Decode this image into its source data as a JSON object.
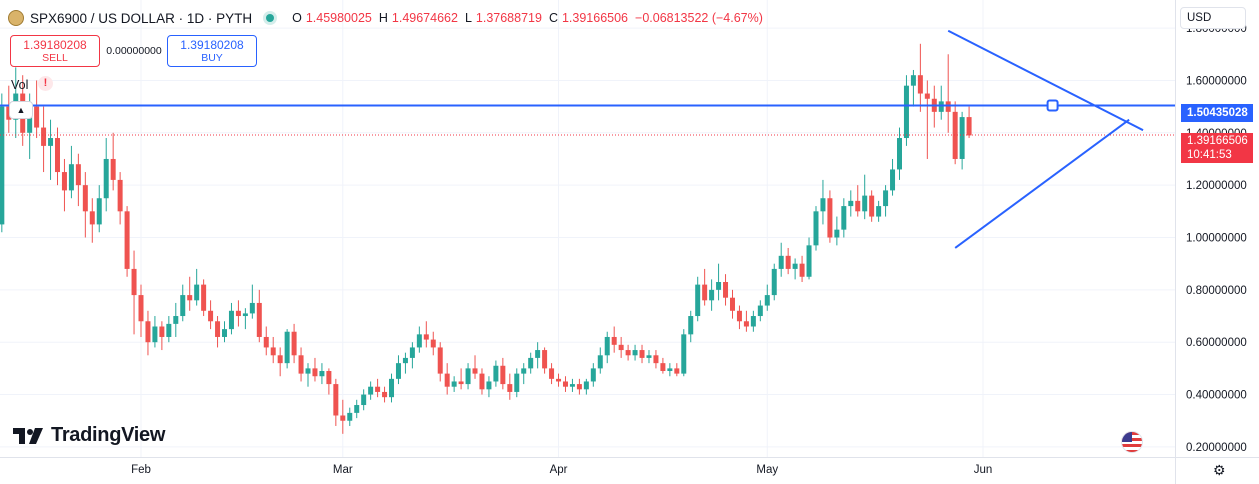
{
  "header": {
    "symbol_title": "SPX6900 / US DOLLAR · 1D · PYTH",
    "open_label": "O",
    "open_value": "1.45980025",
    "high_label": "H",
    "high_value": "1.49674662",
    "low_label": "L",
    "low_value": "1.37688719",
    "close_label": "C",
    "close_value": "1.39166506",
    "change_value": "−0.06813522 (−4.67%)"
  },
  "trade": {
    "sell_price": "1.39180208",
    "sell_label": "SELL",
    "spread": "0.00000000",
    "buy_price": "1.39180208",
    "buy_label": "BUY"
  },
  "volume_label": "Vol",
  "volume_warning": "!",
  "currency_selector": "USD",
  "brand": "TradingView",
  "price_tags": {
    "horizontal_line": "1.50435028",
    "last_price": "1.39166506",
    "countdown": "10:41:53"
  },
  "icons": [
    "symbol-logo-icon",
    "market-open-dot-icon",
    "collapse-chevron-icon",
    "settings-gear-icon",
    "us-flag-icon",
    "tradingview-logo-icon"
  ],
  "colors": {
    "up": "#26a69a",
    "down": "#ef5350",
    "drawing": "#2962ff",
    "price_line": "#f23645"
  },
  "chart_data": {
    "type": "candlestick",
    "x_labels": [
      "Feb",
      "Mar",
      "Apr",
      "May",
      "Jun"
    ],
    "y_tick_labels": [
      "1.80000000",
      "1.60000000",
      "1.40000000",
      "1.20000000",
      "1.00000000",
      "0.80000000",
      "0.60000000",
      "0.40000000",
      "0.20000000"
    ],
    "y_ticks": [
      1.8,
      1.6,
      1.4,
      1.2,
      1.0,
      0.8,
      0.6,
      0.4,
      0.2
    ],
    "ylim": [
      0.15,
      1.85
    ],
    "date_range": [
      "2024-01-08",
      "2024-06-20"
    ],
    "candles": [
      [
        1.05,
        1.15,
        0.88,
        1.02
      ],
      [
        1.02,
        1.22,
        0.98,
        1.18
      ],
      [
        1.18,
        1.3,
        1.05,
        1.2
      ],
      [
        1.2,
        1.25,
        1.0,
        1.05
      ],
      [
        1.05,
        1.55,
        1.02,
        1.5
      ],
      [
        1.5,
        1.58,
        1.4,
        1.45
      ],
      [
        1.45,
        1.65,
        1.38,
        1.55
      ],
      [
        1.55,
        1.62,
        1.35,
        1.4
      ],
      [
        1.4,
        1.55,
        1.3,
        1.5
      ],
      [
        1.5,
        1.6,
        1.38,
        1.42
      ],
      [
        1.42,
        1.5,
        1.25,
        1.35
      ],
      [
        1.35,
        1.45,
        1.22,
        1.38
      ],
      [
        1.38,
        1.42,
        1.2,
        1.25
      ],
      [
        1.25,
        1.3,
        1.1,
        1.18
      ],
      [
        1.18,
        1.35,
        1.15,
        1.28
      ],
      [
        1.28,
        1.32,
        1.12,
        1.2
      ],
      [
        1.2,
        1.25,
        1.0,
        1.1
      ],
      [
        1.1,
        1.15,
        0.98,
        1.05
      ],
      [
        1.05,
        1.2,
        1.02,
        1.15
      ],
      [
        1.15,
        1.38,
        1.1,
        1.3
      ],
      [
        1.3,
        1.4,
        1.18,
        1.22
      ],
      [
        1.22,
        1.25,
        1.05,
        1.1
      ],
      [
        1.1,
        1.12,
        0.85,
        0.88
      ],
      [
        0.88,
        0.95,
        0.63,
        0.78
      ],
      [
        0.78,
        0.82,
        0.62,
        0.68
      ],
      [
        0.68,
        0.72,
        0.55,
        0.6
      ],
      [
        0.6,
        0.7,
        0.58,
        0.66
      ],
      [
        0.66,
        0.68,
        0.57,
        0.62
      ],
      [
        0.62,
        0.7,
        0.6,
        0.67
      ],
      [
        0.67,
        0.75,
        0.62,
        0.7
      ],
      [
        0.7,
        0.82,
        0.68,
        0.78
      ],
      [
        0.78,
        0.85,
        0.72,
        0.76
      ],
      [
        0.76,
        0.88,
        0.74,
        0.82
      ],
      [
        0.82,
        0.84,
        0.7,
        0.72
      ],
      [
        0.72,
        0.76,
        0.65,
        0.68
      ],
      [
        0.68,
        0.7,
        0.58,
        0.62
      ],
      [
        0.62,
        0.68,
        0.6,
        0.65
      ],
      [
        0.65,
        0.75,
        0.63,
        0.72
      ],
      [
        0.72,
        0.76,
        0.66,
        0.7
      ],
      [
        0.7,
        0.73,
        0.65,
        0.71
      ],
      [
        0.71,
        0.82,
        0.69,
        0.75
      ],
      [
        0.75,
        0.8,
        0.6,
        0.62
      ],
      [
        0.62,
        0.66,
        0.55,
        0.58
      ],
      [
        0.58,
        0.62,
        0.52,
        0.55
      ],
      [
        0.55,
        0.58,
        0.47,
        0.52
      ],
      [
        0.52,
        0.65,
        0.5,
        0.64
      ],
      [
        0.64,
        0.67,
        0.52,
        0.55
      ],
      [
        0.55,
        0.58,
        0.45,
        0.48
      ],
      [
        0.48,
        0.52,
        0.43,
        0.5
      ],
      [
        0.5,
        0.54,
        0.45,
        0.47
      ],
      [
        0.47,
        0.52,
        0.44,
        0.49
      ],
      [
        0.49,
        0.5,
        0.4,
        0.44
      ],
      [
        0.44,
        0.46,
        0.28,
        0.32
      ],
      [
        0.32,
        0.38,
        0.25,
        0.3
      ],
      [
        0.3,
        0.35,
        0.28,
        0.33
      ],
      [
        0.33,
        0.38,
        0.31,
        0.36
      ],
      [
        0.36,
        0.42,
        0.34,
        0.4
      ],
      [
        0.4,
        0.45,
        0.38,
        0.43
      ],
      [
        0.43,
        0.46,
        0.39,
        0.41
      ],
      [
        0.41,
        0.43,
        0.37,
        0.39
      ],
      [
        0.39,
        0.48,
        0.37,
        0.46
      ],
      [
        0.46,
        0.55,
        0.44,
        0.52
      ],
      [
        0.52,
        0.56,
        0.48,
        0.54
      ],
      [
        0.54,
        0.6,
        0.5,
        0.58
      ],
      [
        0.58,
        0.66,
        0.56,
        0.63
      ],
      [
        0.63,
        0.68,
        0.58,
        0.61
      ],
      [
        0.61,
        0.64,
        0.55,
        0.58
      ],
      [
        0.58,
        0.6,
        0.45,
        0.48
      ],
      [
        0.48,
        0.52,
        0.4,
        0.43
      ],
      [
        0.43,
        0.47,
        0.41,
        0.45
      ],
      [
        0.45,
        0.5,
        0.42,
        0.44
      ],
      [
        0.44,
        0.52,
        0.42,
        0.5
      ],
      [
        0.5,
        0.55,
        0.46,
        0.48
      ],
      [
        0.48,
        0.5,
        0.4,
        0.42
      ],
      [
        0.42,
        0.47,
        0.39,
        0.45
      ],
      [
        0.45,
        0.53,
        0.43,
        0.51
      ],
      [
        0.51,
        0.54,
        0.42,
        0.44
      ],
      [
        0.44,
        0.48,
        0.38,
        0.41
      ],
      [
        0.41,
        0.5,
        0.39,
        0.48
      ],
      [
        0.48,
        0.52,
        0.44,
        0.5
      ],
      [
        0.5,
        0.56,
        0.48,
        0.54
      ],
      [
        0.54,
        0.6,
        0.5,
        0.57
      ],
      [
        0.57,
        0.58,
        0.48,
        0.5
      ],
      [
        0.5,
        0.52,
        0.44,
        0.46
      ],
      [
        0.46,
        0.48,
        0.43,
        0.45
      ],
      [
        0.45,
        0.47,
        0.41,
        0.43
      ],
      [
        0.43,
        0.46,
        0.41,
        0.44
      ],
      [
        0.44,
        0.46,
        0.4,
        0.42
      ],
      [
        0.42,
        0.46,
        0.4,
        0.45
      ],
      [
        0.45,
        0.52,
        0.43,
        0.5
      ],
      [
        0.5,
        0.58,
        0.48,
        0.55
      ],
      [
        0.55,
        0.64,
        0.52,
        0.62
      ],
      [
        0.62,
        0.66,
        0.56,
        0.59
      ],
      [
        0.59,
        0.62,
        0.54,
        0.57
      ],
      [
        0.57,
        0.59,
        0.53,
        0.55
      ],
      [
        0.55,
        0.59,
        0.53,
        0.57
      ],
      [
        0.57,
        0.59,
        0.52,
        0.54
      ],
      [
        0.54,
        0.57,
        0.52,
        0.55
      ],
      [
        0.55,
        0.57,
        0.5,
        0.52
      ],
      [
        0.52,
        0.54,
        0.48,
        0.49
      ],
      [
        0.49,
        0.52,
        0.47,
        0.5
      ],
      [
        0.5,
        0.52,
        0.47,
        0.48
      ],
      [
        0.48,
        0.65,
        0.47,
        0.63
      ],
      [
        0.63,
        0.72,
        0.6,
        0.7
      ],
      [
        0.7,
        0.85,
        0.68,
        0.82
      ],
      [
        0.82,
        0.88,
        0.74,
        0.76
      ],
      [
        0.76,
        0.84,
        0.72,
        0.8
      ],
      [
        0.8,
        0.9,
        0.76,
        0.83
      ],
      [
        0.83,
        0.86,
        0.74,
        0.77
      ],
      [
        0.77,
        0.8,
        0.69,
        0.72
      ],
      [
        0.72,
        0.74,
        0.65,
        0.68
      ],
      [
        0.68,
        0.72,
        0.64,
        0.66
      ],
      [
        0.66,
        0.72,
        0.64,
        0.7
      ],
      [
        0.7,
        0.76,
        0.68,
        0.74
      ],
      [
        0.74,
        0.82,
        0.72,
        0.78
      ],
      [
        0.78,
        0.9,
        0.76,
        0.88
      ],
      [
        0.88,
        0.98,
        0.85,
        0.93
      ],
      [
        0.93,
        0.96,
        0.86,
        0.88
      ],
      [
        0.88,
        0.92,
        0.84,
        0.9
      ],
      [
        0.9,
        0.93,
        0.83,
        0.85
      ],
      [
        0.85,
        1.0,
        0.84,
        0.97
      ],
      [
        0.97,
        1.12,
        0.95,
        1.1
      ],
      [
        1.1,
        1.22,
        1.05,
        1.15
      ],
      [
        1.15,
        1.18,
        0.98,
        1.0
      ],
      [
        1.0,
        1.08,
        0.97,
        1.03
      ],
      [
        1.03,
        1.15,
        1.0,
        1.12
      ],
      [
        1.12,
        1.18,
        1.08,
        1.14
      ],
      [
        1.14,
        1.2,
        1.08,
        1.1
      ],
      [
        1.1,
        1.24,
        1.07,
        1.16
      ],
      [
        1.16,
        1.18,
        1.06,
        1.08
      ],
      [
        1.08,
        1.14,
        1.06,
        1.12
      ],
      [
        1.12,
        1.2,
        1.08,
        1.18
      ],
      [
        1.18,
        1.3,
        1.16,
        1.26
      ],
      [
        1.26,
        1.42,
        1.22,
        1.38
      ],
      [
        1.38,
        1.62,
        1.35,
        1.58
      ],
      [
        1.58,
        1.64,
        1.5,
        1.62
      ],
      [
        1.62,
        1.74,
        1.48,
        1.55
      ],
      [
        1.55,
        1.6,
        1.3,
        1.53
      ],
      [
        1.53,
        1.58,
        1.42,
        1.48
      ],
      [
        1.48,
        1.58,
        1.45,
        1.52
      ],
      [
        1.52,
        1.7,
        1.4,
        1.48
      ],
      [
        1.48,
        1.52,
        1.28,
        1.3
      ],
      [
        1.3,
        1.48,
        1.26,
        1.46
      ],
      [
        1.46,
        1.5,
        1.38,
        1.39
      ]
    ],
    "horizontal_line": 1.50435028,
    "last_price_line": 1.39166506,
    "triangle_drawing": {
      "upper_line": [
        [
          "2024-05-27",
          1.79
        ],
        [
          "2024-06-24",
          1.41
        ]
      ],
      "lower_line": [
        [
          "2024-05-28",
          0.96
        ],
        [
          "2024-06-22",
          1.45
        ]
      ],
      "marker": [
        "2024-06-11",
        1.50435028
      ]
    }
  }
}
